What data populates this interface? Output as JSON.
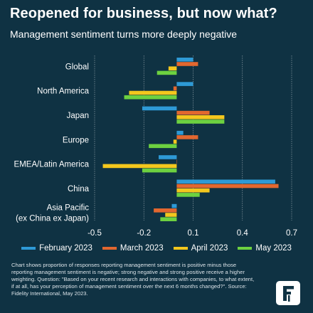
{
  "title": "Reopened for business, but now what?",
  "subtitle": "Management sentiment turns more deeply negative",
  "footnote": "Chart shows proportion of responses reporting management sentiment is positive minus those reporting management sentiment is negative; strong negative and strong positive receive a higher weighting. Question: \"Based on your recent research and interactions with companies, to what extent, if at all, has your perception of management sentiment over the next 6 months changed?\". Source: Fidelity International, May 2023.",
  "logo": {
    "name": "fidelity-international-logo",
    "glyph": "F"
  },
  "colors": {
    "background": "#0f3243",
    "grid": "#8d9da6"
  },
  "chart_data": {
    "type": "bar",
    "orientation": "horizontal",
    "categories": [
      "Global",
      "North America",
      "Japan",
      "Europe",
      "EMEA/Latin America",
      "China",
      "Asia Pacific\n(ex China ex Japan)"
    ],
    "series": [
      {
        "name": "February 2023",
        "color": "#2e9ad6",
        "values": [
          0.1,
          0.1,
          -0.21,
          0.04,
          -0.11,
          0.6,
          -0.03
        ]
      },
      {
        "name": "March 2023",
        "color": "#e2672f",
        "values": [
          0.13,
          -0.02,
          0.2,
          0.13,
          0.0,
          0.62,
          -0.14
        ]
      },
      {
        "name": "April 2023",
        "color": "#f4c71d",
        "values": [
          -0.05,
          -0.29,
          0.29,
          -0.02,
          -0.45,
          0.2,
          -0.07
        ]
      },
      {
        "name": "May 2023",
        "color": "#6dd140",
        "values": [
          -0.12,
          -0.32,
          0.29,
          -0.17,
          -0.21,
          0.14,
          -0.1
        ]
      }
    ],
    "xlim": [
      -0.5,
      0.7
    ],
    "xticks": [
      "-0.5",
      "-0.2",
      "0.1",
      "0.4",
      "0.7"
    ],
    "xtick_values": [
      -0.5,
      -0.2,
      0.1,
      0.4,
      0.7
    ],
    "grid": true,
    "legend": "bottom"
  }
}
